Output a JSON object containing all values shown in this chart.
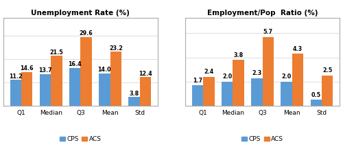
{
  "chart1": {
    "title": "Unemployment Rate (%)",
    "categories": [
      "Q1",
      "Median",
      "Q3",
      "Mean",
      "Std"
    ],
    "cps_values": [
      11.2,
      13.7,
      16.4,
      14.0,
      3.8
    ],
    "acs_values": [
      14.6,
      21.5,
      29.6,
      23.2,
      12.4
    ]
  },
  "chart2": {
    "title": "Employment/Pop  Ratio (%)",
    "categories": [
      "Q1",
      "Median",
      "Q3",
      "Mean",
      "Std"
    ],
    "cps_values": [
      1.7,
      2.0,
      2.3,
      2.0,
      0.5
    ],
    "acs_values": [
      2.4,
      3.8,
      5.7,
      4.3,
      2.5
    ]
  },
  "cps_color": "#5B9BD5",
  "acs_color": "#ED7D31",
  "bar_width": 0.38,
  "label_fontsize": 5.8,
  "title_fontsize": 7.5,
  "tick_fontsize": 6.5,
  "legend_fontsize": 6.5,
  "background_color": "#ffffff"
}
